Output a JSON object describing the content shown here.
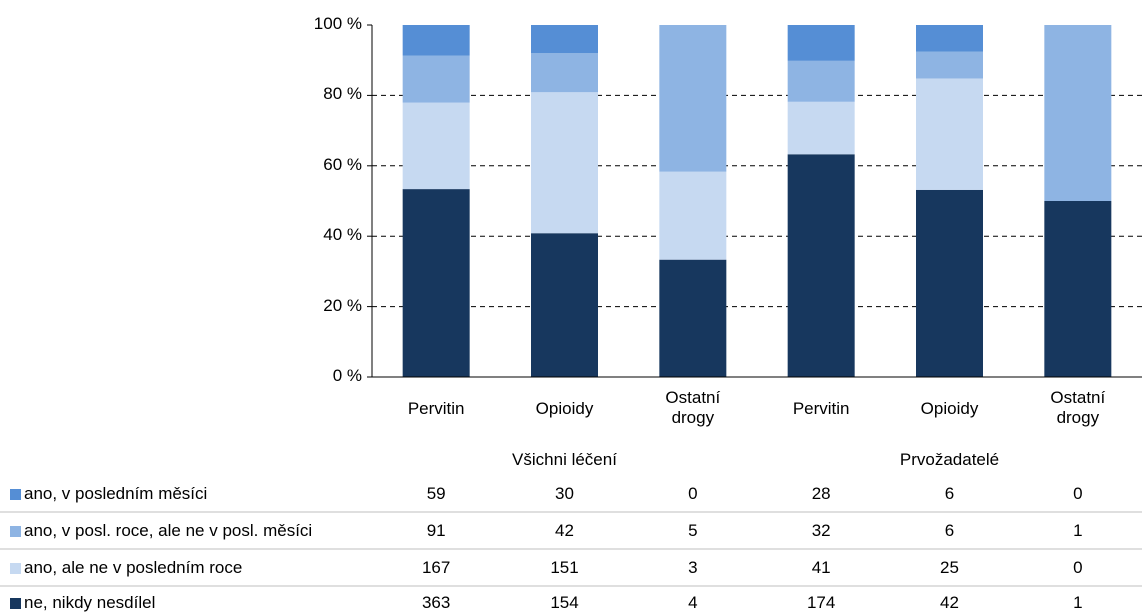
{
  "chart_data": {
    "type": "bar",
    "stacked": "percent",
    "categories": [
      "Pervitin",
      "Opioidy",
      "Ostatní drogy",
      "Pervitin",
      "Opioidy",
      "Ostatní drogy"
    ],
    "groups": [
      {
        "name": "Všichni léčení",
        "categories": [
          0,
          1,
          2
        ]
      },
      {
        "name": "Prvožadatelé",
        "categories": [
          3,
          4,
          5
        ]
      }
    ],
    "series": [
      {
        "name": "ano, v posledním měsíci",
        "color": "#558ed5",
        "values": [
          59,
          30,
          0,
          28,
          6,
          0
        ]
      },
      {
        "name": "ano, v posl. roce, ale ne v posl. měsíci",
        "color": "#8eb4e3",
        "values": [
          91,
          42,
          5,
          32,
          6,
          1
        ]
      },
      {
        "name": "ano, ale ne v posledním roce",
        "color": "#c6d9f1",
        "values": [
          167,
          151,
          3,
          41,
          25,
          0
        ]
      },
      {
        "name": "ne, nikdy nesdílel",
        "color": "#17375e",
        "values": [
          363,
          154,
          4,
          174,
          42,
          1
        ]
      }
    ],
    "ylim": [
      0,
      100
    ],
    "yticks": [
      {
        "value": 0,
        "label": "0 %"
      },
      {
        "value": 20,
        "label": "20 %"
      },
      {
        "value": 40,
        "label": "40 %"
      },
      {
        "value": 60,
        "label": "60 %"
      },
      {
        "value": 80,
        "label": "80 %"
      },
      {
        "value": 100,
        "label": "100 %"
      }
    ],
    "grid": true
  }
}
